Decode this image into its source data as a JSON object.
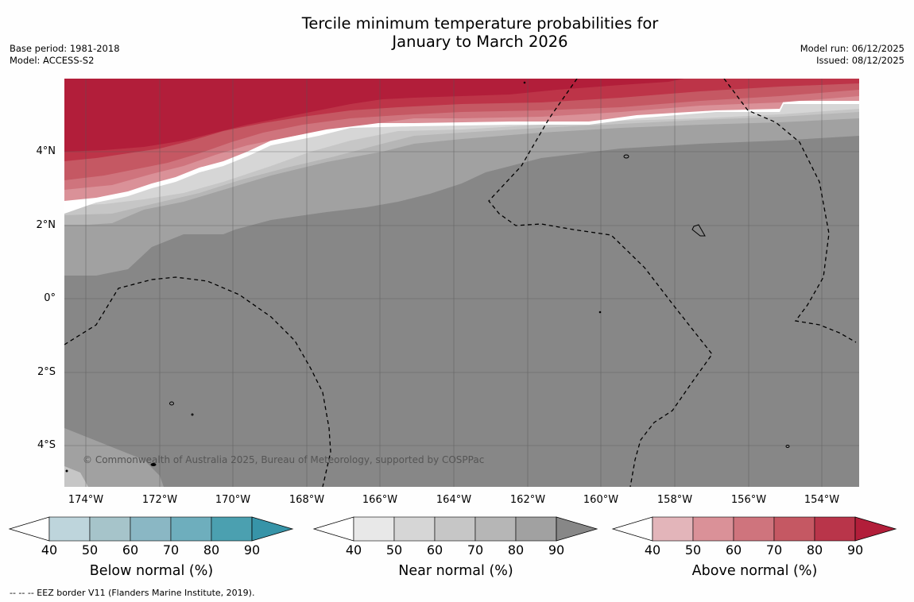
{
  "title_line1": "Tercile minimum temperature probabilities for",
  "title_line2": "January to March 2026",
  "base_period": "Base period: 1981-2018",
  "model": "Model: ACCESS-S2",
  "model_run": "Model run: 06/12/2025",
  "issued": "Issued: 08/12/2025",
  "lat_labels": [
    "4°N",
    "2°N",
    "0°",
    "2°S",
    "4°S"
  ],
  "lon_labels": [
    "174°W",
    "172°W",
    "170°W",
    "168°W",
    "166°W",
    "164°W",
    "162°W",
    "160°W",
    "158°W",
    "156°W",
    "154°W"
  ],
  "credit": "© Commonwealth of Australia 2025, Bureau of Meteorology, supported by COSPPac",
  "colorbars": [
    {
      "title": "Below normal (%)",
      "ticks": [
        "40",
        "50",
        "60",
        "70",
        "80",
        "90"
      ],
      "colors": [
        "#bed5dc",
        "#a6c4ca",
        "#8ab7c4",
        "#6eaebd",
        "#4ba0b0"
      ],
      "arrow_color": "#3794a8"
    },
    {
      "title": "Near normal (%)",
      "ticks": [
        "40",
        "50",
        "60",
        "70",
        "80",
        "90"
      ],
      "colors": [
        "#e8e8e8",
        "#d6d6d6",
        "#c6c6c6",
        "#b6b6b6",
        "#a1a1a1"
      ],
      "arrow_color": "#878787"
    },
    {
      "title": "Above normal (%)",
      "ticks": [
        "40",
        "50",
        "60",
        "70",
        "80",
        "90"
      ],
      "colors": [
        "#e3b5ba",
        "#da9198",
        "#cf747d",
        "#c55863",
        "#b9354a"
      ],
      "arrow_color": "#b21e3a"
    }
  ],
  "footnote": "--  --  -- EEZ border V11 (Flanders Marine Institute, 2019).",
  "colors": {
    "above_90": "#b21e3a",
    "above_80": "#bd3448",
    "above_70": "#c55863",
    "above_60": "#cf747d",
    "above_50": "#da9198",
    "near_90": "#878787",
    "near_80": "#a1a1a1",
    "near_70": "#b6b6b6",
    "near_60": "#c6c6c6",
    "near_50": "#d6d6d6"
  }
}
